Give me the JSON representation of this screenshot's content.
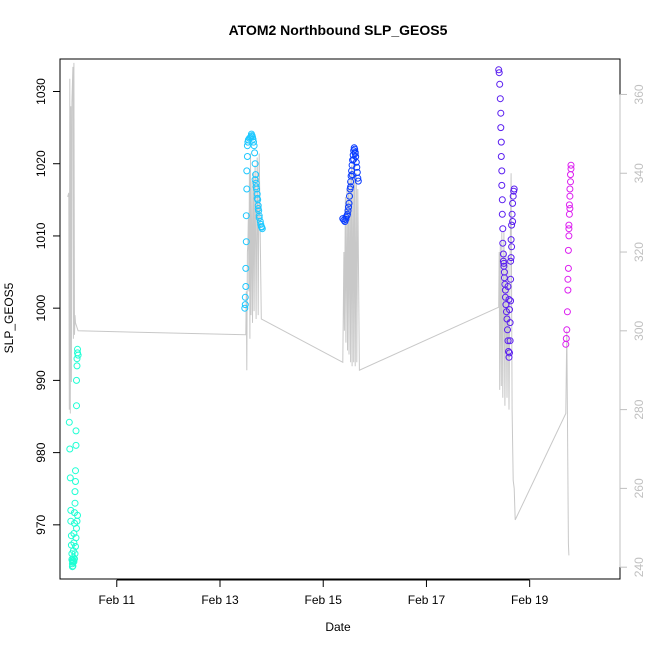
{
  "chart_data": {
    "type": "scatter",
    "title": "ATOM2 Northbound SLP_GEOS5",
    "xlabel": "Date",
    "ylabel": "SLP_GEOS5",
    "x_unit": "days in February",
    "xlim": [
      9.9,
      20.75
    ],
    "ylim": [
      962.5,
      1034.5
    ],
    "y2lim": [
      237,
      369
    ],
    "x_ticks": [
      {
        "value": 11,
        "label": "Feb 11"
      },
      {
        "value": 13,
        "label": "Feb 13"
      },
      {
        "value": 15,
        "label": "Feb 15"
      },
      {
        "value": 17,
        "label": "Feb 17"
      },
      {
        "value": 19,
        "label": "Feb 19"
      }
    ],
    "y_ticks": [
      970,
      980,
      990,
      1000,
      1010,
      1020,
      1030
    ],
    "y2_ticks": [
      240,
      260,
      280,
      300,
      320,
      340,
      360
    ],
    "series": [
      {
        "color": "#1effd4",
        "points": [
          [
            10.08,
            984.2
          ],
          [
            10.09,
            980.5
          ],
          [
            10.1,
            976.5
          ],
          [
            10.11,
            972.0
          ],
          [
            10.11,
            970.5
          ],
          [
            10.12,
            968.5
          ],
          [
            10.12,
            967.2
          ],
          [
            10.13,
            966.0
          ],
          [
            10.13,
            965.2
          ],
          [
            10.14,
            964.6
          ],
          [
            10.14,
            964.2
          ],
          [
            10.15,
            964.3
          ],
          [
            10.15,
            964.8
          ],
          [
            10.16,
            965.5
          ],
          [
            10.16,
            966.4
          ],
          [
            10.17,
            967.5
          ],
          [
            10.17,
            968.8
          ],
          [
            10.18,
            970.2
          ],
          [
            10.18,
            971.7
          ],
          [
            10.19,
            973.0
          ],
          [
            10.19,
            974.6
          ],
          [
            10.2,
            976.0
          ],
          [
            10.2,
            977.5
          ],
          [
            10.21,
            981.0
          ],
          [
            10.21,
            983.0
          ],
          [
            10.22,
            986.5
          ],
          [
            10.22,
            990.0
          ],
          [
            10.23,
            992.0
          ],
          [
            10.23,
            993.0
          ],
          [
            10.24,
            993.8
          ],
          [
            10.24,
            994.3
          ],
          [
            10.25,
            993.5
          ],
          [
            10.14,
            965.0
          ],
          [
            10.16,
            965.1
          ],
          [
            10.17,
            964.9
          ],
          [
            10.18,
            965.3
          ],
          [
            10.19,
            966.0
          ],
          [
            10.2,
            967.0
          ],
          [
            10.21,
            968.2
          ],
          [
            10.22,
            969.5
          ],
          [
            10.23,
            970.5
          ],
          [
            10.24,
            971.3
          ]
        ]
      },
      {
        "color": "#1ec8ff",
        "points": [
          [
            13.48,
            1000.0
          ],
          [
            13.49,
            1000.5
          ],
          [
            13.49,
            1001.5
          ],
          [
            13.5,
            1003.0
          ],
          [
            13.5,
            1005.5
          ],
          [
            13.51,
            1009.2
          ],
          [
            13.51,
            1012.8
          ],
          [
            13.52,
            1016.5
          ],
          [
            13.52,
            1019.0
          ],
          [
            13.53,
            1021.0
          ],
          [
            13.53,
            1022.5
          ],
          [
            13.54,
            1023.0
          ],
          [
            13.55,
            1023.3
          ],
          [
            13.57,
            1023.5
          ],
          [
            13.59,
            1023.6
          ],
          [
            13.6,
            1023.8
          ],
          [
            13.61,
            1024.1
          ],
          [
            13.62,
            1023.9
          ],
          [
            13.63,
            1023.7
          ],
          [
            13.64,
            1023.4
          ],
          [
            13.65,
            1023.0
          ],
          [
            13.66,
            1022.5
          ],
          [
            13.67,
            1021.5
          ],
          [
            13.68,
            1020.0
          ],
          [
            13.69,
            1018.5
          ],
          [
            13.7,
            1017.3
          ],
          [
            13.71,
            1016.5
          ],
          [
            13.72,
            1015.8
          ],
          [
            13.73,
            1015.0
          ],
          [
            13.74,
            1014.2
          ],
          [
            13.75,
            1013.5
          ],
          [
            13.76,
            1012.8
          ],
          [
            13.78,
            1012.0
          ],
          [
            13.8,
            1011.3
          ],
          [
            13.82,
            1011.0
          ],
          [
            13.68,
            1017.8
          ],
          [
            13.7,
            1016.8
          ],
          [
            13.72,
            1015.2
          ],
          [
            13.74,
            1013.8
          ],
          [
            13.76,
            1012.5
          ],
          [
            13.79,
            1011.6
          ],
          [
            13.81,
            1011.2
          ]
        ]
      },
      {
        "color": "#0a3cff",
        "points": [
          [
            15.38,
            1012.4
          ],
          [
            15.4,
            1012.2
          ],
          [
            15.42,
            1012.0
          ],
          [
            15.44,
            1012.3
          ],
          [
            15.46,
            1012.8
          ],
          [
            15.48,
            1013.5
          ],
          [
            15.5,
            1014.5
          ],
          [
            15.51,
            1015.5
          ],
          [
            15.52,
            1016.5
          ],
          [
            15.53,
            1017.5
          ],
          [
            15.54,
            1018.3
          ],
          [
            15.55,
            1019.0
          ],
          [
            15.56,
            1019.8
          ],
          [
            15.57,
            1020.5
          ],
          [
            15.58,
            1021.2
          ],
          [
            15.59,
            1021.8
          ],
          [
            15.6,
            1022.2
          ],
          [
            15.61,
            1022.0
          ],
          [
            15.62,
            1021.6
          ],
          [
            15.63,
            1021.0
          ],
          [
            15.64,
            1020.2
          ],
          [
            15.65,
            1019.5
          ],
          [
            15.66,
            1018.8
          ],
          [
            15.67,
            1018.0
          ],
          [
            15.68,
            1017.6
          ],
          [
            15.44,
            1012.6
          ],
          [
            15.47,
            1013.0
          ],
          [
            15.49,
            1014.0
          ],
          [
            15.53,
            1016.8
          ],
          [
            15.56,
            1018.5
          ],
          [
            15.59,
            1020.6
          ],
          [
            15.62,
            1021.4
          ]
        ]
      },
      {
        "color": "#5a1ef0",
        "points": [
          [
            18.4,
            1033.0
          ],
          [
            18.41,
            1032.6
          ],
          [
            18.42,
            1031.0
          ],
          [
            18.43,
            1029.0
          ],
          [
            18.44,
            1027.0
          ],
          [
            18.44,
            1025.0
          ],
          [
            18.45,
            1023.0
          ],
          [
            18.45,
            1021.0
          ],
          [
            18.46,
            1019.0
          ],
          [
            18.46,
            1017.0
          ],
          [
            18.47,
            1015.0
          ],
          [
            18.47,
            1013.0
          ],
          [
            18.48,
            1011.0
          ],
          [
            18.48,
            1009.0
          ],
          [
            18.49,
            1007.5
          ],
          [
            18.49,
            1006.5
          ],
          [
            18.5,
            1006.2
          ],
          [
            18.5,
            1005.8
          ],
          [
            18.51,
            1005.0
          ],
          [
            18.51,
            1004.2
          ],
          [
            18.52,
            1003.3
          ],
          [
            18.53,
            1002.5
          ],
          [
            18.53,
            1001.5
          ],
          [
            18.54,
            1000.5
          ],
          [
            18.55,
            999.5
          ],
          [
            18.56,
            998.5
          ],
          [
            18.57,
            997.0
          ],
          [
            18.58,
            995.5
          ],
          [
            18.59,
            994.0
          ],
          [
            18.6,
            993.2
          ],
          [
            18.61,
            993.8
          ],
          [
            18.62,
            995.5
          ],
          [
            18.62,
            998.0
          ],
          [
            18.63,
            1001.0
          ],
          [
            18.63,
            1004.0
          ],
          [
            18.64,
            1007.0
          ],
          [
            18.64,
            1009.5
          ],
          [
            18.65,
            1011.5
          ],
          [
            18.66,
            1013.0
          ],
          [
            18.67,
            1014.5
          ],
          [
            18.68,
            1015.5
          ],
          [
            18.69,
            1016.2
          ],
          [
            18.7,
            1016.5
          ],
          [
            18.58,
            1003.0
          ],
          [
            18.6,
            1001.2
          ],
          [
            18.61,
            999.8
          ],
          [
            18.63,
            1006.5
          ],
          [
            18.65,
            1008.5
          ],
          [
            18.67,
            1012.0
          ]
        ]
      },
      {
        "color": "#dc1ef0",
        "points": [
          [
            19.7,
            995.0
          ],
          [
            19.71,
            995.8
          ],
          [
            19.72,
            997.0
          ],
          [
            19.73,
            999.5
          ],
          [
            19.74,
            1002.5
          ],
          [
            19.75,
            1005.5
          ],
          [
            19.75,
            1008.0
          ],
          [
            19.76,
            1010.0
          ],
          [
            19.76,
            1011.5
          ],
          [
            19.77,
            1013.0
          ],
          [
            19.77,
            1014.3
          ],
          [
            19.78,
            1015.5
          ],
          [
            19.78,
            1016.5
          ],
          [
            19.79,
            1017.5
          ],
          [
            19.79,
            1018.5
          ],
          [
            19.8,
            1019.3
          ],
          [
            19.8,
            1019.8
          ],
          [
            19.78,
            1013.8
          ],
          [
            19.76,
            1011.0
          ],
          [
            19.74,
            1004.0
          ]
        ]
      }
    ],
    "secondary_line": {
      "color": "#c8c8c8",
      "axis": "right",
      "points": [
        [
          10.05,
          334
        ],
        [
          10.07,
          335
        ],
        [
          10.08,
          280
        ],
        [
          10.09,
          364
        ],
        [
          10.1,
          279
        ],
        [
          10.11,
          357
        ],
        [
          10.12,
          287
        ],
        [
          10.13,
          358
        ],
        [
          10.15,
          367
        ],
        [
          10.16,
          298
        ],
        [
          10.17,
          368
        ],
        [
          10.18,
          299
        ],
        [
          10.19,
          304
        ],
        [
          10.2,
          302
        ],
        [
          10.25,
          300
        ],
        [
          13.5,
          299
        ],
        [
          13.51,
          310
        ],
        [
          13.52,
          290
        ],
        [
          13.53,
          320
        ],
        [
          13.54,
          322
        ],
        [
          13.55,
          330
        ],
        [
          13.56,
          310
        ],
        [
          13.57,
          340
        ],
        [
          13.58,
          298
        ],
        [
          13.59,
          345
        ],
        [
          13.6,
          304
        ],
        [
          13.62,
          338
        ],
        [
          13.63,
          302
        ],
        [
          13.65,
          340
        ],
        [
          13.66,
          305
        ],
        [
          13.68,
          342
        ],
        [
          13.7,
          303
        ],
        [
          13.72,
          344
        ],
        [
          13.74,
          304
        ],
        [
          13.76,
          345
        ],
        [
          13.8,
          303
        ],
        [
          15.38,
          292
        ],
        [
          15.4,
          320
        ],
        [
          15.41,
          300
        ],
        [
          15.43,
          334
        ],
        [
          15.44,
          297
        ],
        [
          15.46,
          336
        ],
        [
          15.47,
          295
        ],
        [
          15.49,
          338
        ],
        [
          15.5,
          294
        ],
        [
          15.52,
          340
        ],
        [
          15.53,
          292
        ],
        [
          15.55,
          342
        ],
        [
          15.56,
          291
        ],
        [
          15.58,
          343
        ],
        [
          15.59,
          292
        ],
        [
          15.61,
          344
        ],
        [
          15.62,
          291
        ],
        [
          15.64,
          340
        ],
        [
          15.65,
          292
        ],
        [
          15.67,
          336
        ],
        [
          15.7,
          290
        ],
        [
          18.4,
          306
        ],
        [
          18.41,
          320
        ],
        [
          18.42,
          285
        ],
        [
          18.43,
          322
        ],
        [
          18.45,
          286
        ],
        [
          18.46,
          325
        ],
        [
          18.48,
          283
        ],
        [
          18.5,
          325
        ],
        [
          18.52,
          281
        ],
        [
          18.54,
          320
        ],
        [
          18.56,
          283
        ],
        [
          18.58,
          318
        ],
        [
          18.6,
          280
        ],
        [
          18.62,
          318
        ],
        [
          18.64,
          340
        ],
        [
          18.66,
          280
        ],
        [
          18.68,
          262
        ],
        [
          18.7,
          260
        ],
        [
          18.72,
          252
        ],
        [
          19.7,
          279
        ],
        [
          19.72,
          300
        ],
        [
          19.75,
          246
        ],
        [
          19.76,
          243
        ]
      ]
    }
  }
}
